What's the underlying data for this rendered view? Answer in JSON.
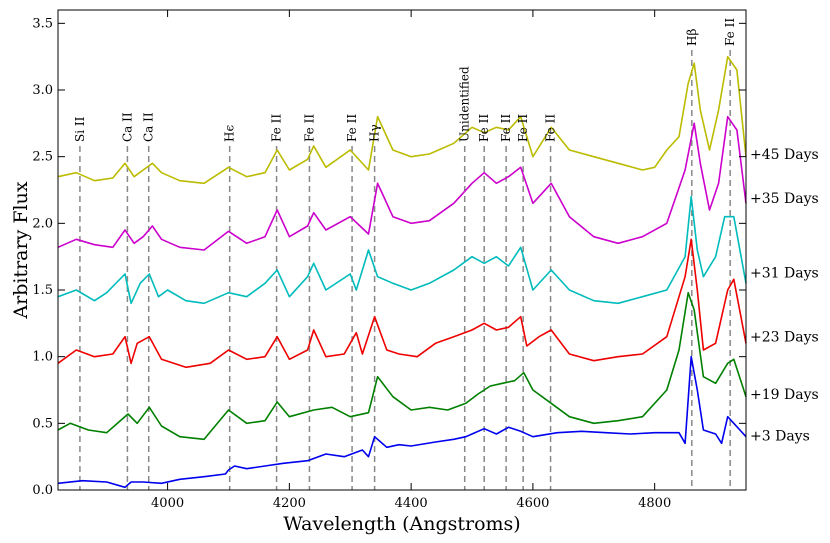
{
  "chart_data": {
    "type": "line",
    "title": "",
    "xlabel": "Wavelength (Angstroms)",
    "ylabel": "Arbitrary Flux",
    "xlim": [
      3820,
      4950
    ],
    "ylim": [
      0.0,
      3.6
    ],
    "xticks": [
      4000,
      4200,
      4400,
      4600,
      4800
    ],
    "yticks": [
      0.0,
      0.5,
      1.0,
      1.5,
      2.0,
      2.5,
      3.0,
      3.5
    ],
    "grid": false,
    "series": [
      {
        "name": "+3 Days",
        "color": "#0000ee",
        "x": [
          3820,
          3860,
          3900,
          3930,
          3940,
          3960,
          3990,
          4020,
          4060,
          4095,
          4100,
          4110,
          4130,
          4160,
          4190,
          4230,
          4260,
          4290,
          4320,
          4330,
          4340,
          4360,
          4380,
          4400,
          4440,
          4470,
          4490,
          4500,
          4520,
          4540,
          4560,
          4580,
          4600,
          4640,
          4680,
          4720,
          4760,
          4800,
          4840,
          4850,
          4860,
          4870,
          4880,
          4900,
          4910,
          4920,
          4930,
          4940,
          4950
        ],
        "y": [
          0.05,
          0.07,
          0.06,
          0.02,
          0.06,
          0.06,
          0.05,
          0.08,
          0.1,
          0.12,
          0.15,
          0.18,
          0.16,
          0.18,
          0.2,
          0.22,
          0.27,
          0.25,
          0.3,
          0.25,
          0.4,
          0.32,
          0.34,
          0.33,
          0.36,
          0.38,
          0.4,
          0.42,
          0.46,
          0.42,
          0.47,
          0.44,
          0.4,
          0.43,
          0.44,
          0.43,
          0.42,
          0.43,
          0.43,
          0.35,
          1.0,
          0.75,
          0.45,
          0.42,
          0.35,
          0.55,
          0.5,
          0.45,
          0.4
        ]
      },
      {
        "name": "+19 Days",
        "color": "#008000",
        "x": [
          3820,
          3840,
          3870,
          3900,
          3935,
          3950,
          3970,
          3990,
          4020,
          4060,
          4100,
          4130,
          4160,
          4180,
          4200,
          4240,
          4270,
          4300,
          4330,
          4345,
          4370,
          4400,
          4430,
          4460,
          4490,
          4510,
          4530,
          4550,
          4570,
          4585,
          4600,
          4630,
          4660,
          4700,
          4740,
          4780,
          4820,
          4840,
          4855,
          4865,
          4880,
          4900,
          4920,
          4930,
          4950
        ],
        "y": [
          0.45,
          0.5,
          0.45,
          0.43,
          0.57,
          0.5,
          0.62,
          0.48,
          0.4,
          0.38,
          0.6,
          0.5,
          0.52,
          0.66,
          0.55,
          0.6,
          0.62,
          0.55,
          0.58,
          0.85,
          0.7,
          0.6,
          0.62,
          0.6,
          0.65,
          0.72,
          0.78,
          0.8,
          0.82,
          0.88,
          0.75,
          0.65,
          0.55,
          0.5,
          0.52,
          0.55,
          0.75,
          1.05,
          1.48,
          1.35,
          0.85,
          0.8,
          0.95,
          0.98,
          0.7
        ]
      },
      {
        "name": "+23 Days",
        "color": "#ee0000",
        "x": [
          3820,
          3850,
          3880,
          3910,
          3930,
          3940,
          3950,
          3970,
          3990,
          4030,
          4070,
          4100,
          4130,
          4160,
          4180,
          4200,
          4230,
          4240,
          4260,
          4290,
          4310,
          4320,
          4340,
          4360,
          4380,
          4410,
          4440,
          4470,
          4500,
          4520,
          4540,
          4560,
          4580,
          4590,
          4610,
          4630,
          4660,
          4700,
          4740,
          4780,
          4820,
          4850,
          4860,
          4870,
          4880,
          4900,
          4920,
          4930,
          4950
        ],
        "y": [
          0.95,
          1.05,
          1.0,
          1.02,
          1.15,
          0.95,
          1.1,
          1.15,
          0.98,
          0.92,
          0.95,
          1.05,
          0.98,
          1.0,
          1.15,
          0.98,
          1.05,
          1.2,
          1.0,
          1.02,
          1.18,
          1.02,
          1.3,
          1.05,
          1.02,
          1.0,
          1.1,
          1.15,
          1.2,
          1.25,
          1.2,
          1.22,
          1.3,
          1.08,
          1.15,
          1.2,
          1.02,
          0.97,
          1.0,
          1.02,
          1.15,
          1.6,
          1.88,
          1.5,
          1.05,
          1.1,
          1.5,
          1.58,
          1.1
        ]
      },
      {
        "name": "+31 Days",
        "color": "#00bbbb",
        "x": [
          3820,
          3850,
          3880,
          3900,
          3930,
          3940,
          3955,
          3970,
          3985,
          4000,
          4030,
          4060,
          4100,
          4130,
          4160,
          4180,
          4200,
          4230,
          4240,
          4260,
          4300,
          4310,
          4330,
          4345,
          4370,
          4400,
          4430,
          4470,
          4500,
          4520,
          4540,
          4560,
          4580,
          4600,
          4630,
          4660,
          4700,
          4740,
          4780,
          4820,
          4850,
          4860,
          4870,
          4880,
          4900,
          4915,
          4930,
          4950
        ],
        "y": [
          1.45,
          1.5,
          1.42,
          1.48,
          1.62,
          1.4,
          1.55,
          1.62,
          1.45,
          1.5,
          1.42,
          1.4,
          1.48,
          1.45,
          1.55,
          1.65,
          1.45,
          1.6,
          1.7,
          1.5,
          1.62,
          1.5,
          1.8,
          1.6,
          1.55,
          1.5,
          1.55,
          1.65,
          1.75,
          1.7,
          1.75,
          1.68,
          1.82,
          1.5,
          1.65,
          1.5,
          1.42,
          1.4,
          1.45,
          1.5,
          1.75,
          2.2,
          1.8,
          1.6,
          1.75,
          2.05,
          2.05,
          1.55
        ]
      },
      {
        "name": "+35 Days",
        "color": "#cc00cc",
        "x": [
          3820,
          3850,
          3880,
          3910,
          3930,
          3945,
          3960,
          3975,
          3990,
          4020,
          4060,
          4100,
          4130,
          4160,
          4180,
          4200,
          4230,
          4240,
          4260,
          4300,
          4330,
          4345,
          4370,
          4400,
          4430,
          4470,
          4500,
          4520,
          4540,
          4560,
          4580,
          4600,
          4630,
          4660,
          4700,
          4740,
          4780,
          4820,
          4850,
          4865,
          4875,
          4890,
          4905,
          4920,
          4935,
          4950
        ],
        "y": [
          1.82,
          1.88,
          1.84,
          1.82,
          1.95,
          1.85,
          1.9,
          1.98,
          1.88,
          1.82,
          1.8,
          1.94,
          1.85,
          1.9,
          2.1,
          1.9,
          1.98,
          2.08,
          1.95,
          2.05,
          1.92,
          2.3,
          2.05,
          2.0,
          2.02,
          2.15,
          2.3,
          2.38,
          2.3,
          2.35,
          2.42,
          2.15,
          2.3,
          2.05,
          1.9,
          1.85,
          1.9,
          2.0,
          2.4,
          2.75,
          2.45,
          2.1,
          2.3,
          2.8,
          2.7,
          2.15
        ]
      },
      {
        "name": "+45 Days",
        "color": "#bbbb00",
        "x": [
          3820,
          3850,
          3880,
          3910,
          3930,
          3945,
          3960,
          3975,
          3990,
          4020,
          4060,
          4100,
          4130,
          4160,
          4180,
          4200,
          4230,
          4240,
          4260,
          4300,
          4330,
          4345,
          4370,
          4400,
          4430,
          4470,
          4500,
          4520,
          4540,
          4560,
          4580,
          4600,
          4630,
          4660,
          4700,
          4740,
          4780,
          4800,
          4820,
          4840,
          4855,
          4865,
          4875,
          4890,
          4905,
          4920,
          4935,
          4950
        ],
        "y": [
          2.35,
          2.38,
          2.32,
          2.34,
          2.45,
          2.35,
          2.4,
          2.45,
          2.38,
          2.32,
          2.3,
          2.42,
          2.35,
          2.38,
          2.55,
          2.4,
          2.48,
          2.58,
          2.42,
          2.55,
          2.4,
          2.8,
          2.55,
          2.5,
          2.52,
          2.6,
          2.72,
          2.68,
          2.72,
          2.7,
          2.8,
          2.5,
          2.72,
          2.55,
          2.5,
          2.45,
          2.4,
          2.42,
          2.55,
          2.65,
          3.05,
          3.2,
          2.85,
          2.55,
          2.85,
          3.25,
          3.15,
          2.5
        ]
      }
    ],
    "series_labels": [
      {
        "text": "+45 Days",
        "y": 2.52
      },
      {
        "text": "+35 Days",
        "y": 2.19
      },
      {
        "text": "+31 Days",
        "y": 1.63
      },
      {
        "text": "+23 Days",
        "y": 1.15
      },
      {
        "text": "+19 Days",
        "y": 0.72
      },
      {
        "text": "+3 Days",
        "y": 0.41
      }
    ],
    "line_ids": [
      {
        "label": "Si II",
        "x": 3856,
        "y_top": 2.58
      },
      {
        "label": "Ca II",
        "x": 3934,
        "y_top": 2.58
      },
      {
        "label": "Ca II",
        "x": 3969,
        "y_top": 2.58
      },
      {
        "label": "Hϵ",
        "x": 4102,
        "y_top": 2.58
      },
      {
        "label": "Fe II",
        "x": 4179,
        "y_top": 2.58
      },
      {
        "label": "Fe II",
        "x": 4233,
        "y_top": 2.58
      },
      {
        "label": "Fe II",
        "x": 4303,
        "y_top": 2.58
      },
      {
        "label": "Hγ",
        "x": 4340,
        "y_top": 2.58
      },
      {
        "label": "Unidentified",
        "x": 4488,
        "y_top": 2.58
      },
      {
        "label": "Fe II",
        "x": 4520,
        "y_top": 2.58
      },
      {
        "label": "Fe II",
        "x": 4556,
        "y_top": 2.58
      },
      {
        "label": "Fe II",
        "x": 4584,
        "y_top": 2.58
      },
      {
        "label": "Fe II",
        "x": 4629,
        "y_top": 2.58
      },
      {
        "label": "Hβ",
        "x": 4861,
        "y_top": 3.3
      },
      {
        "label": "Fe II",
        "x": 4924,
        "y_top": 3.3
      }
    ]
  }
}
